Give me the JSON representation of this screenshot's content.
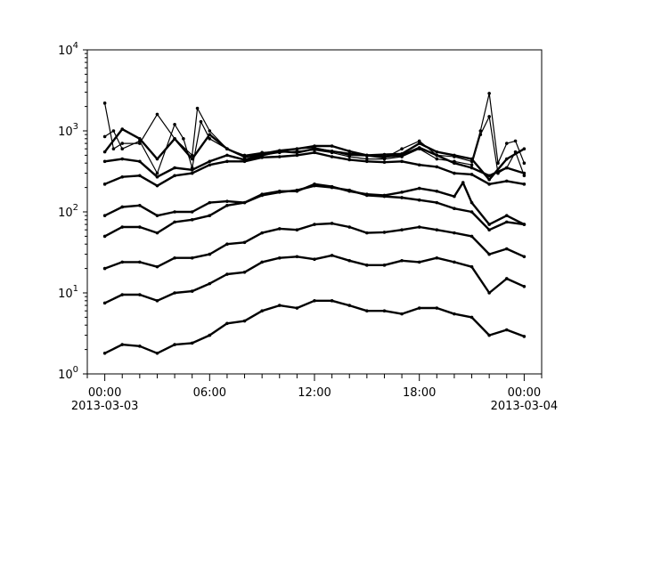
{
  "chart_data": {
    "type": "line",
    "title": "",
    "xlabel": "",
    "ylabel": "",
    "x_unit": "hours since 2013-03-03 00:00",
    "xlim_hours": [
      -1,
      25
    ],
    "ylim": [
      1,
      10000
    ],
    "yscale": "log",
    "grid": false,
    "legend": "none",
    "line_color": "#000000",
    "y_ticks": [
      {
        "value": 1,
        "base": "10",
        "exp": "0"
      },
      {
        "value": 10,
        "base": "10",
        "exp": "1"
      },
      {
        "value": 100,
        "base": "10",
        "exp": "2"
      },
      {
        "value": 1000,
        "base": "10",
        "exp": "3"
      },
      {
        "value": 10000,
        "base": "10",
        "exp": "4"
      }
    ],
    "x_ticks": [
      {
        "hour": 0,
        "label": "00:00",
        "sublabel": "2013-03-03"
      },
      {
        "hour": 6,
        "label": "06:00",
        "sublabel": ""
      },
      {
        "hour": 12,
        "label": "12:00",
        "sublabel": ""
      },
      {
        "hour": 18,
        "label": "18:00",
        "sublabel": ""
      },
      {
        "hour": 24,
        "label": "00:00",
        "sublabel": "2013-03-04"
      }
    ],
    "series": [
      {
        "x": [
          0,
          1,
          2,
          3,
          4,
          5,
          6,
          7,
          8,
          9,
          10,
          11,
          12,
          13,
          14,
          15,
          16,
          17,
          18,
          19,
          20,
          21,
          22,
          23,
          24
        ],
        "values": [
          1.8,
          2.3,
          2.2,
          1.8,
          2.3,
          2.4,
          3.0,
          4.2,
          4.5,
          6,
          7,
          6.5,
          8,
          8,
          7,
          6,
          6,
          5.5,
          6.5,
          6.5,
          5.5,
          5,
          3,
          3.5,
          2.9
        ]
      },
      {
        "x": [
          0,
          1,
          2,
          3,
          4,
          5,
          6,
          7,
          8,
          9,
          10,
          11,
          12,
          13,
          14,
          15,
          16,
          17,
          18,
          19,
          20,
          21,
          22,
          23,
          24
        ],
        "values": [
          7.5,
          9.5,
          9.5,
          8,
          10,
          10.5,
          13,
          17,
          18,
          24,
          27,
          28,
          26,
          29,
          25,
          22,
          22,
          25,
          24,
          27,
          24,
          21,
          10,
          15,
          12
        ]
      },
      {
        "x": [
          0,
          1,
          2,
          3,
          4,
          5,
          6,
          7,
          8,
          9,
          10,
          11,
          12,
          13,
          14,
          15,
          16,
          17,
          18,
          19,
          20,
          21,
          22,
          23,
          24
        ],
        "values": [
          20,
          24,
          24,
          21,
          27,
          27,
          30,
          40,
          42,
          55,
          62,
          60,
          70,
          72,
          65,
          55,
          56,
          60,
          65,
          60,
          55,
          50,
          30,
          35,
          28
        ]
      },
      {
        "x": [
          0,
          1,
          2,
          3,
          4,
          5,
          6,
          7,
          8,
          9,
          10,
          11,
          12,
          13,
          14,
          15,
          16,
          17,
          18,
          19,
          20,
          21,
          22,
          23,
          24
        ],
        "values": [
          50,
          65,
          65,
          55,
          75,
          80,
          90,
          120,
          130,
          160,
          175,
          185,
          210,
          200,
          185,
          160,
          155,
          150,
          140,
          130,
          110,
          100,
          60,
          75,
          70
        ]
      },
      {
        "x": [
          0,
          1,
          2,
          3,
          4,
          5,
          6,
          7,
          8,
          9,
          10,
          11,
          12,
          13,
          14,
          15,
          16,
          17,
          18,
          19,
          20,
          20.5,
          21,
          22,
          23,
          24
        ],
        "values": [
          90,
          115,
          120,
          90,
          100,
          100,
          130,
          135,
          130,
          165,
          180,
          180,
          220,
          205,
          180,
          165,
          160,
          175,
          195,
          180,
          155,
          230,
          130,
          70,
          90,
          70
        ]
      },
      {
        "x": [
          0,
          1,
          2,
          3,
          4,
          5,
          6,
          7,
          8,
          9,
          10,
          11,
          12,
          13,
          14,
          15,
          16,
          17,
          18,
          19,
          20,
          21,
          22,
          23,
          24
        ],
        "values": [
          220,
          270,
          280,
          210,
          280,
          300,
          380,
          420,
          420,
          470,
          480,
          500,
          540,
          480,
          440,
          420,
          410,
          420,
          380,
          360,
          300,
          290,
          220,
          240,
          220
        ]
      },
      {
        "x": [
          0,
          1,
          2,
          3,
          4,
          5,
          6,
          7,
          8,
          9,
          10,
          11,
          12,
          13,
          14,
          15,
          16,
          17,
          18,
          19,
          20,
          21,
          22,
          23,
          24
        ],
        "values": [
          420,
          450,
          420,
          270,
          350,
          330,
          420,
          500,
          440,
          500,
          560,
          540,
          600,
          560,
          520,
          500,
          480,
          500,
          620,
          500,
          400,
          350,
          280,
          350,
          300
        ]
      },
      {
        "x": [
          0,
          1,
          2,
          3,
          4,
          5,
          6,
          7,
          8,
          9,
          10,
          11,
          12,
          13,
          14,
          15,
          16,
          17,
          18,
          19,
          20,
          21,
          22,
          23,
          24
        ],
        "values": [
          550,
          1050,
          800,
          450,
          800,
          450,
          900,
          600,
          480,
          520,
          570,
          600,
          650,
          650,
          560,
          500,
          510,
          520,
          700,
          550,
          500,
          450,
          250,
          450,
          600
        ]
      },
      {
        "x": [
          0,
          0.5,
          1,
          2,
          3,
          4,
          5,
          5.3,
          6,
          7,
          8,
          9,
          10,
          11,
          12,
          13,
          14,
          15,
          16,
          17,
          18,
          19,
          20,
          21,
          21.5,
          22,
          22.5,
          23,
          23.5,
          24
        ],
        "values": [
          2200,
          600,
          700,
          700,
          1600,
          800,
          500,
          1900,
          1000,
          600,
          500,
          540,
          560,
          600,
          620,
          560,
          500,
          490,
          460,
          600,
          750,
          500,
          480,
          420,
          1000,
          2900,
          400,
          700,
          750,
          400
        ]
      },
      {
        "x": [
          0,
          0.5,
          1,
          2,
          3,
          4,
          4.5,
          5,
          5.5,
          6,
          7,
          8,
          9,
          10,
          11,
          12,
          13,
          14,
          15,
          16,
          17,
          18,
          19,
          20,
          21,
          21.5,
          22,
          22.5,
          23,
          23.5,
          24
        ],
        "values": [
          850,
          1000,
          600,
          750,
          300,
          1200,
          800,
          350,
          1300,
          800,
          600,
          470,
          500,
          540,
          560,
          580,
          540,
          480,
          450,
          450,
          480,
          600,
          450,
          420,
          380,
          900,
          1500,
          300,
          350,
          550,
          280
        ]
      }
    ]
  }
}
